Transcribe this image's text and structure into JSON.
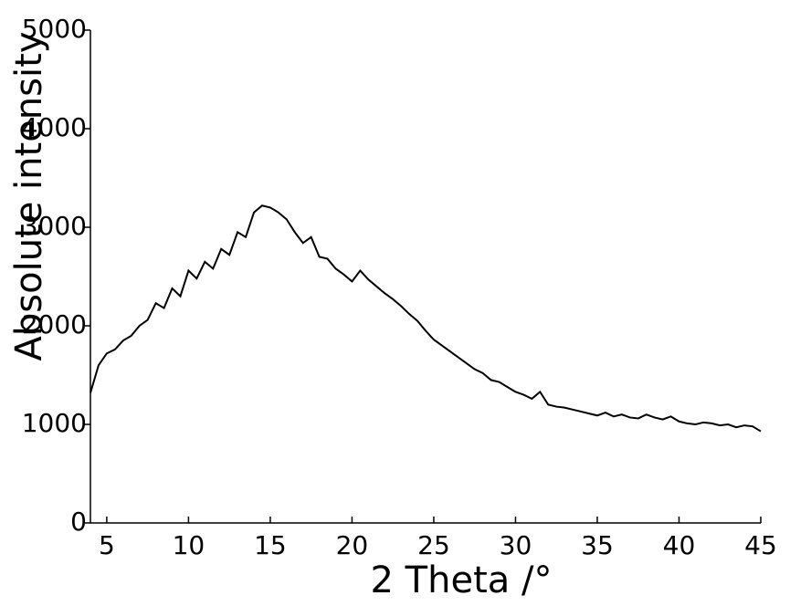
{
  "chart_data": {
    "type": "line",
    "x_label": "2 Theta /°",
    "y_label": "Absolute intensity",
    "x": [
      4,
      4.5,
      5,
      5.5,
      6,
      6.5,
      7,
      7.5,
      8,
      8.5,
      9,
      9.5,
      10,
      10.5,
      11,
      11.5,
      12,
      12.5,
      13,
      13.5,
      14,
      14.5,
      15,
      15.5,
      16,
      16.5,
      17,
      17.5,
      18,
      18.5,
      19,
      19.5,
      20,
      20.5,
      21,
      21.5,
      22,
      22.5,
      23,
      23.5,
      24,
      24.5,
      25,
      25.5,
      26,
      26.5,
      27,
      27.5,
      28,
      28.5,
      29,
      29.5,
      30,
      30.5,
      31,
      31.5,
      32,
      32.5,
      33,
      33.5,
      34,
      34.5,
      35,
      35.5,
      36,
      36.5,
      37,
      37.5,
      38,
      38.5,
      39,
      39.5,
      40,
      40.5,
      41,
      41.5,
      42,
      42.5,
      43,
      43.5,
      44,
      44.5,
      45
    ],
    "values": [
      1320,
      1600,
      1720,
      1760,
      1850,
      1900,
      2000,
      2060,
      2230,
      2180,
      2380,
      2300,
      2560,
      2480,
      2650,
      2580,
      2780,
      2720,
      2950,
      2900,
      3150,
      3220,
      3200,
      3150,
      3080,
      2950,
      2840,
      2900,
      2700,
      2680,
      2580,
      2520,
      2450,
      2560,
      2470,
      2400,
      2330,
      2270,
      2200,
      2120,
      2050,
      1950,
      1860,
      1800,
      1740,
      1680,
      1620,
      1560,
      1520,
      1450,
      1430,
      1380,
      1330,
      1300,
      1260,
      1330,
      1200,
      1180,
      1170,
      1150,
      1130,
      1110,
      1090,
      1120,
      1080,
      1100,
      1070,
      1060,
      1100,
      1070,
      1050,
      1080,
      1030,
      1010,
      1000,
      1020,
      1010,
      990,
      1000,
      970,
      990,
      980,
      930
    ],
    "color": "#000000",
    "xlim": [
      4,
      45
    ],
    "xticks": [
      5,
      10,
      15,
      20,
      25,
      30,
      35,
      40,
      45
    ],
    "ylim": [
      0,
      5000
    ],
    "yticks": [
      0,
      1000,
      2000,
      3000,
      4000,
      5000
    ],
    "grid": false
  }
}
